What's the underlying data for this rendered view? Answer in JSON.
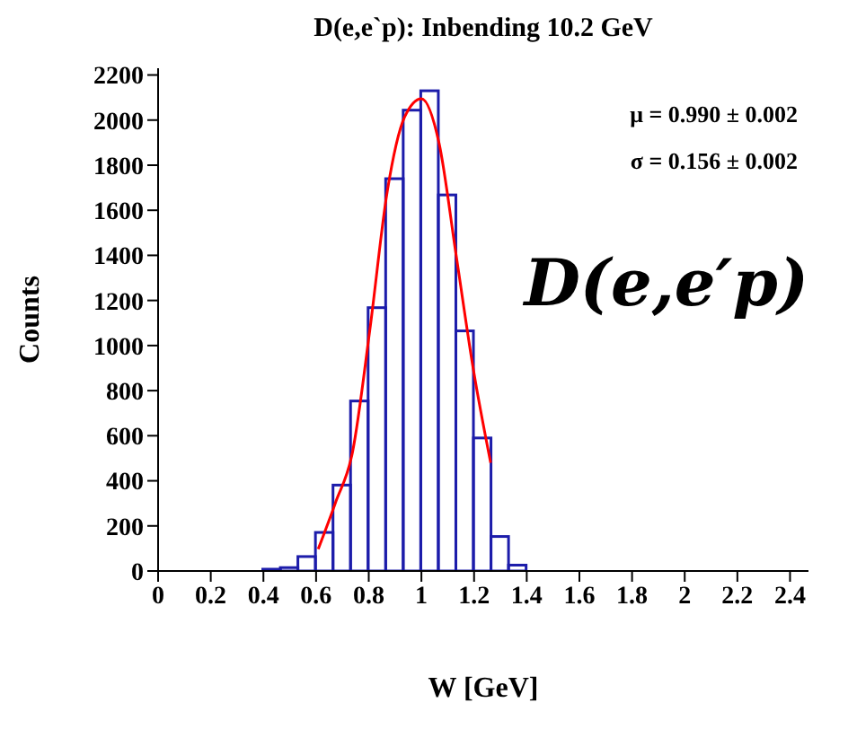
{
  "chart_data": {
    "type": "histogram",
    "title": "D(e,e`p): Inbending 10.2 GeV",
    "xlabel": "W [GeV]",
    "ylabel": "Counts",
    "annotations": [
      "μ = 0.990  ± 0.002",
      "σ = 0.156  ± 0.002",
      "D(e,e′p)"
    ],
    "bins": [
      0.4,
      0.4667,
      0.5333,
      0.6,
      0.6667,
      0.7333,
      0.8,
      0.8667,
      0.9333,
      1.0,
      1.0667,
      1.1333,
      1.2,
      1.2667,
      1.3333,
      1.4
    ],
    "values": [
      8,
      15,
      64,
      171,
      381,
      754,
      1168,
      1740,
      2044,
      2130,
      1668,
      1065,
      590,
      153,
      26
    ],
    "color": "#1c1caa",
    "series": [
      {
        "type": "line",
        "color": "#ff0000",
        "x": [
          0.608,
          0.673,
          0.739,
          0.804,
          0.87,
          0.936,
          1.0,
          1.067,
          1.132,
          1.198,
          1.263
        ],
        "values": [
          97,
          301,
          531,
          1068,
          1681,
          2013,
          2095,
          1898,
          1400,
          889,
          480
        ]
      }
    ],
    "marker": "none",
    "line_style": "solid",
    "grid": false,
    "legend": false,
    "xlim": [
      0,
      2.47
    ],
    "xticks": [
      0,
      0.2,
      0.4,
      0.6,
      0.8,
      1,
      1.2,
      1.4,
      1.6,
      1.8,
      2,
      2.2,
      2.4
    ],
    "ylim": [
      0,
      2230
    ],
    "yticks": [
      0,
      200,
      400,
      600,
      800,
      1000,
      1200,
      1400,
      1600,
      1800,
      2000,
      2200
    ]
  }
}
